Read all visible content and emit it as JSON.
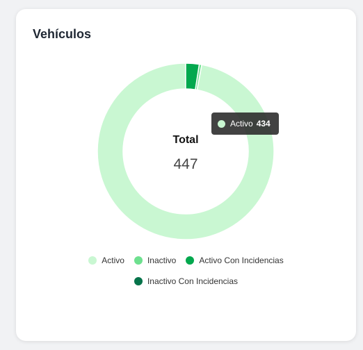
{
  "card": {
    "title": "Vehículos"
  },
  "center": {
    "label": "Total",
    "value": "447"
  },
  "tooltip": {
    "label": "Activo",
    "value": "434",
    "color": "#c9f7d2"
  },
  "chart_data": {
    "type": "pie",
    "title": "Vehículos",
    "donut": true,
    "total": 447,
    "legend_position": "bottom",
    "categories": [
      "Activo",
      "Inactivo",
      "Activo Con Incidencias",
      "Inactivo Con Incidencias"
    ],
    "values": [
      434,
      2,
      11,
      0
    ],
    "colors": [
      "#c9f7d2",
      "#6ee08f",
      "#03a84e",
      "#06734a"
    ]
  }
}
